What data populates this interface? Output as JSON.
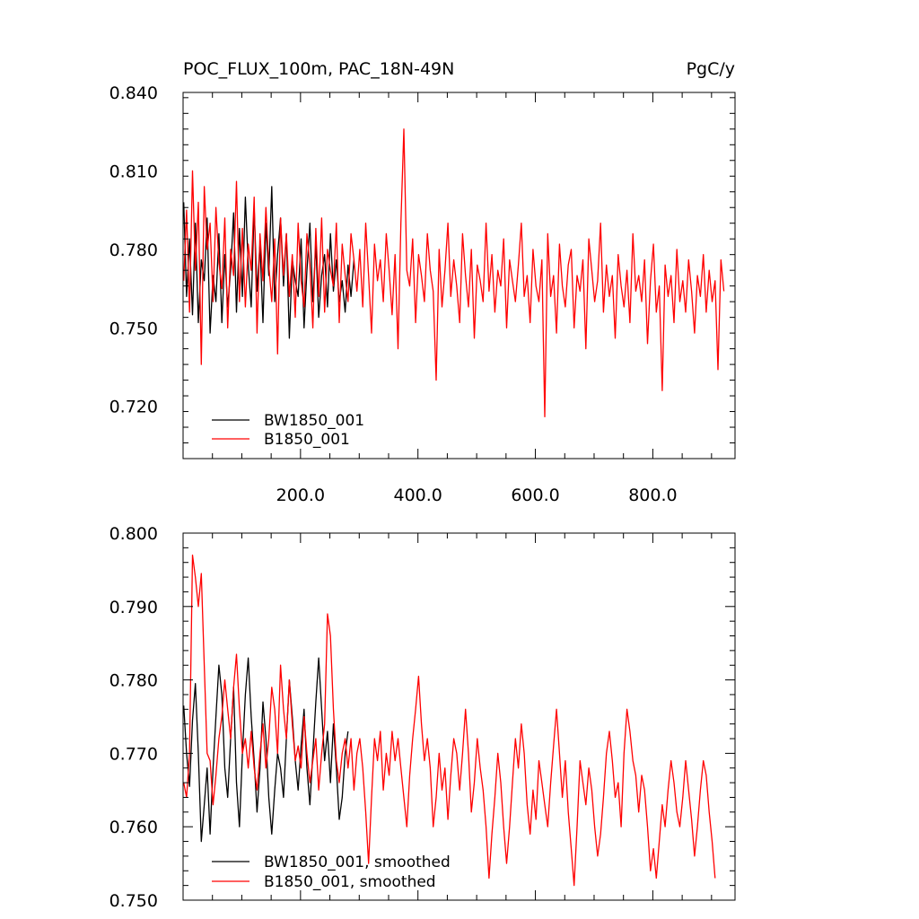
{
  "chart_data": [
    {
      "type": "line",
      "title": "POC_FLUX_100m, PAC_18N-49N",
      "units": "PgC/y",
      "xlim": [
        0,
        940
      ],
      "ylim": [
        0.7,
        0.84
      ],
      "x_tick_labels": [
        {
          "value": 200,
          "label": "200.0"
        },
        {
          "value": 400,
          "label": "400.0"
        },
        {
          "value": 600,
          "label": "600.0"
        },
        {
          "value": 800,
          "label": "800.0"
        }
      ],
      "y_tick_labels": [
        {
          "value": 0.72,
          "label": "0.720"
        },
        {
          "value": 0.75,
          "label": "0.750"
        },
        {
          "value": 0.78,
          "label": "0.780"
        },
        {
          "value": 0.81,
          "label": "0.810"
        },
        {
          "value": 0.84,
          "label": "0.840"
        }
      ],
      "legend_position": "bottom-left",
      "series": [
        {
          "name": "BW1850_001",
          "color": "#000000",
          "x_start": 1,
          "x_step": 5,
          "values": [
            0.798,
            0.762,
            0.784,
            0.755,
            0.79,
            0.752,
            0.776,
            0.768,
            0.792,
            0.748,
            0.77,
            0.76,
            0.786,
            0.752,
            0.778,
            0.758,
            0.772,
            0.794,
            0.756,
            0.788,
            0.762,
            0.8,
            0.774,
            0.758,
            0.796,
            0.764,
            0.782,
            0.752,
            0.79,
            0.77,
            0.804,
            0.76,
            0.778,
            0.792,
            0.766,
            0.786,
            0.746,
            0.776,
            0.768,
            0.762,
            0.784,
            0.75,
            0.772,
            0.79,
            0.76,
            0.782,
            0.754,
            0.77,
            0.778,
            0.758,
            0.786,
            0.764,
            0.776,
            0.76,
            0.768,
            0.756,
            0.774,
            0.762,
            0.776
          ]
        },
        {
          "name": "B1850_001",
          "color": "#ff0000",
          "x_start": 1,
          "x_step": 5,
          "values": [
            0.768,
            0.795,
            0.756,
            0.81,
            0.772,
            0.798,
            0.736,
            0.804,
            0.78,
            0.79,
            0.76,
            0.796,
            0.775,
            0.765,
            0.792,
            0.75,
            0.78,
            0.77,
            0.806,
            0.76,
            0.788,
            0.758,
            0.782,
            0.772,
            0.8,
            0.748,
            0.786,
            0.768,
            0.796,
            0.774,
            0.76,
            0.784,
            0.74,
            0.792,
            0.77,
            0.786,
            0.762,
            0.778,
            0.754,
            0.79,
            0.768,
            0.758,
            0.786,
            0.774,
            0.75,
            0.788,
            0.762,
            0.792,
            0.756,
            0.78,
            0.772,
            0.766,
            0.79,
            0.752,
            0.782,
            0.77,
            0.76,
            0.786,
            0.776,
            0.764,
            0.78,
            0.758,
            0.79,
            0.77,
            0.748,
            0.782,
            0.768,
            0.776,
            0.76,
            0.786,
            0.772,
            0.755,
            0.778,
            0.742,
            0.79,
            0.826,
            0.772,
            0.766,
            0.784,
            0.752,
            0.778,
            0.77,
            0.76,
            0.786,
            0.772,
            0.764,
            0.73,
            0.78,
            0.758,
            0.772,
            0.79,
            0.762,
            0.776,
            0.766,
            0.752,
            0.786,
            0.77,
            0.758,
            0.78,
            0.746,
            0.774,
            0.768,
            0.76,
            0.79,
            0.764,
            0.778,
            0.756,
            0.772,
            0.766,
            0.784,
            0.75,
            0.776,
            0.768,
            0.76,
            0.774,
            0.79,
            0.762,
            0.77,
            0.752,
            0.78,
            0.766,
            0.76,
            0.776,
            0.716,
            0.786,
            0.762,
            0.77,
            0.748,
            0.782,
            0.766,
            0.758,
            0.774,
            0.78,
            0.75,
            0.77,
            0.764,
            0.776,
            0.742,
            0.784,
            0.772,
            0.76,
            0.768,
            0.79,
            0.756,
            0.774,
            0.762,
            0.77,
            0.746,
            0.778,
            0.766,
            0.758,
            0.772,
            0.752,
            0.786,
            0.764,
            0.77,
            0.76,
            0.776,
            0.744,
            0.768,
            0.782,
            0.756,
            0.766,
            0.726,
            0.774,
            0.762,
            0.77,
            0.752,
            0.78,
            0.76,
            0.768,
            0.756,
            0.776,
            0.764,
            0.748,
            0.77,
            0.762,
            0.778,
            0.756,
            0.772,
            0.76,
            0.768,
            0.734,
            0.776,
            0.764
          ]
        }
      ]
    },
    {
      "type": "line",
      "xlim": [
        0,
        940
      ],
      "ylim": [
        0.75,
        0.8
      ],
      "y_tick_labels": [
        {
          "value": 0.75,
          "label": "0.750"
        },
        {
          "value": 0.76,
          "label": "0.760"
        },
        {
          "value": 0.77,
          "label": "0.770"
        },
        {
          "value": 0.78,
          "label": "0.780"
        },
        {
          "value": 0.79,
          "label": "0.790"
        },
        {
          "value": 0.8,
          "label": "0.800"
        }
      ],
      "legend_position": "bottom-left",
      "series": [
        {
          "name": "BW1850_001, smoothed",
          "color": "#000000",
          "x_start": 1,
          "x_step": 5,
          "values": [
            0.7765,
            0.77,
            0.7655,
            0.7745,
            0.7795,
            0.77,
            0.758,
            0.763,
            0.768,
            0.759,
            0.768,
            0.775,
            0.782,
            0.778,
            0.768,
            0.764,
            0.772,
            0.779,
            0.766,
            0.76,
            0.77,
            0.778,
            0.783,
            0.775,
            0.769,
            0.762,
            0.768,
            0.777,
            0.772,
            0.764,
            0.759,
            0.765,
            0.77,
            0.768,
            0.764,
            0.772,
            0.78,
            0.775,
            0.769,
            0.765,
            0.771,
            0.776,
            0.768,
            0.763,
            0.77,
            0.777,
            0.783,
            0.776,
            0.769,
            0.773,
            0.766,
            0.774,
            0.768,
            0.761,
            0.764,
            0.77,
            0.773
          ]
        },
        {
          "name": "B1850_001, smoothed",
          "color": "#ff0000",
          "x_start": 1,
          "x_step": 5,
          "values": [
            0.766,
            0.764,
            0.77,
            0.797,
            0.794,
            0.79,
            0.7945,
            0.782,
            0.77,
            0.769,
            0.763,
            0.767,
            0.772,
            0.775,
            0.78,
            0.776,
            0.772,
            0.779,
            0.7835,
            0.776,
            0.77,
            0.772,
            0.768,
            0.773,
            0.768,
            0.765,
            0.77,
            0.774,
            0.768,
            0.772,
            0.779,
            0.776,
            0.77,
            0.782,
            0.776,
            0.772,
            0.78,
            0.774,
            0.769,
            0.771,
            0.768,
            0.775,
            0.77,
            0.766,
            0.769,
            0.772,
            0.765,
            0.77,
            0.774,
            0.789,
            0.786,
            0.776,
            0.769,
            0.766,
            0.77,
            0.772,
            0.768,
            0.772,
            0.765,
            0.77,
            0.772,
            0.768,
            0.762,
            0.755,
            0.764,
            0.772,
            0.769,
            0.773,
            0.765,
            0.77,
            0.767,
            0.773,
            0.769,
            0.772,
            0.768,
            0.764,
            0.76,
            0.767,
            0.772,
            0.776,
            0.7805,
            0.774,
            0.769,
            0.772,
            0.768,
            0.76,
            0.764,
            0.77,
            0.765,
            0.768,
            0.761,
            0.767,
            0.772,
            0.77,
            0.765,
            0.77,
            0.776,
            0.77,
            0.762,
            0.766,
            0.772,
            0.768,
            0.765,
            0.76,
            0.753,
            0.759,
            0.764,
            0.77,
            0.766,
            0.76,
            0.755,
            0.76,
            0.766,
            0.772,
            0.768,
            0.774,
            0.77,
            0.763,
            0.759,
            0.765,
            0.761,
            0.769,
            0.766,
            0.763,
            0.76,
            0.766,
            0.771,
            0.776,
            0.77,
            0.764,
            0.769,
            0.762,
            0.757,
            0.752,
            0.76,
            0.769,
            0.766,
            0.763,
            0.768,
            0.765,
            0.76,
            0.756,
            0.759,
            0.764,
            0.77,
            0.773,
            0.769,
            0.764,
            0.766,
            0.76,
            0.77,
            0.776,
            0.773,
            0.769,
            0.767,
            0.762,
            0.767,
            0.765,
            0.76,
            0.754,
            0.757,
            0.753,
            0.758,
            0.763,
            0.76,
            0.765,
            0.769,
            0.766,
            0.762,
            0.76,
            0.764,
            0.769,
            0.765,
            0.761,
            0.756,
            0.76,
            0.765,
            0.769,
            0.767,
            0.762,
            0.758,
            0.753
          ]
        }
      ]
    }
  ]
}
